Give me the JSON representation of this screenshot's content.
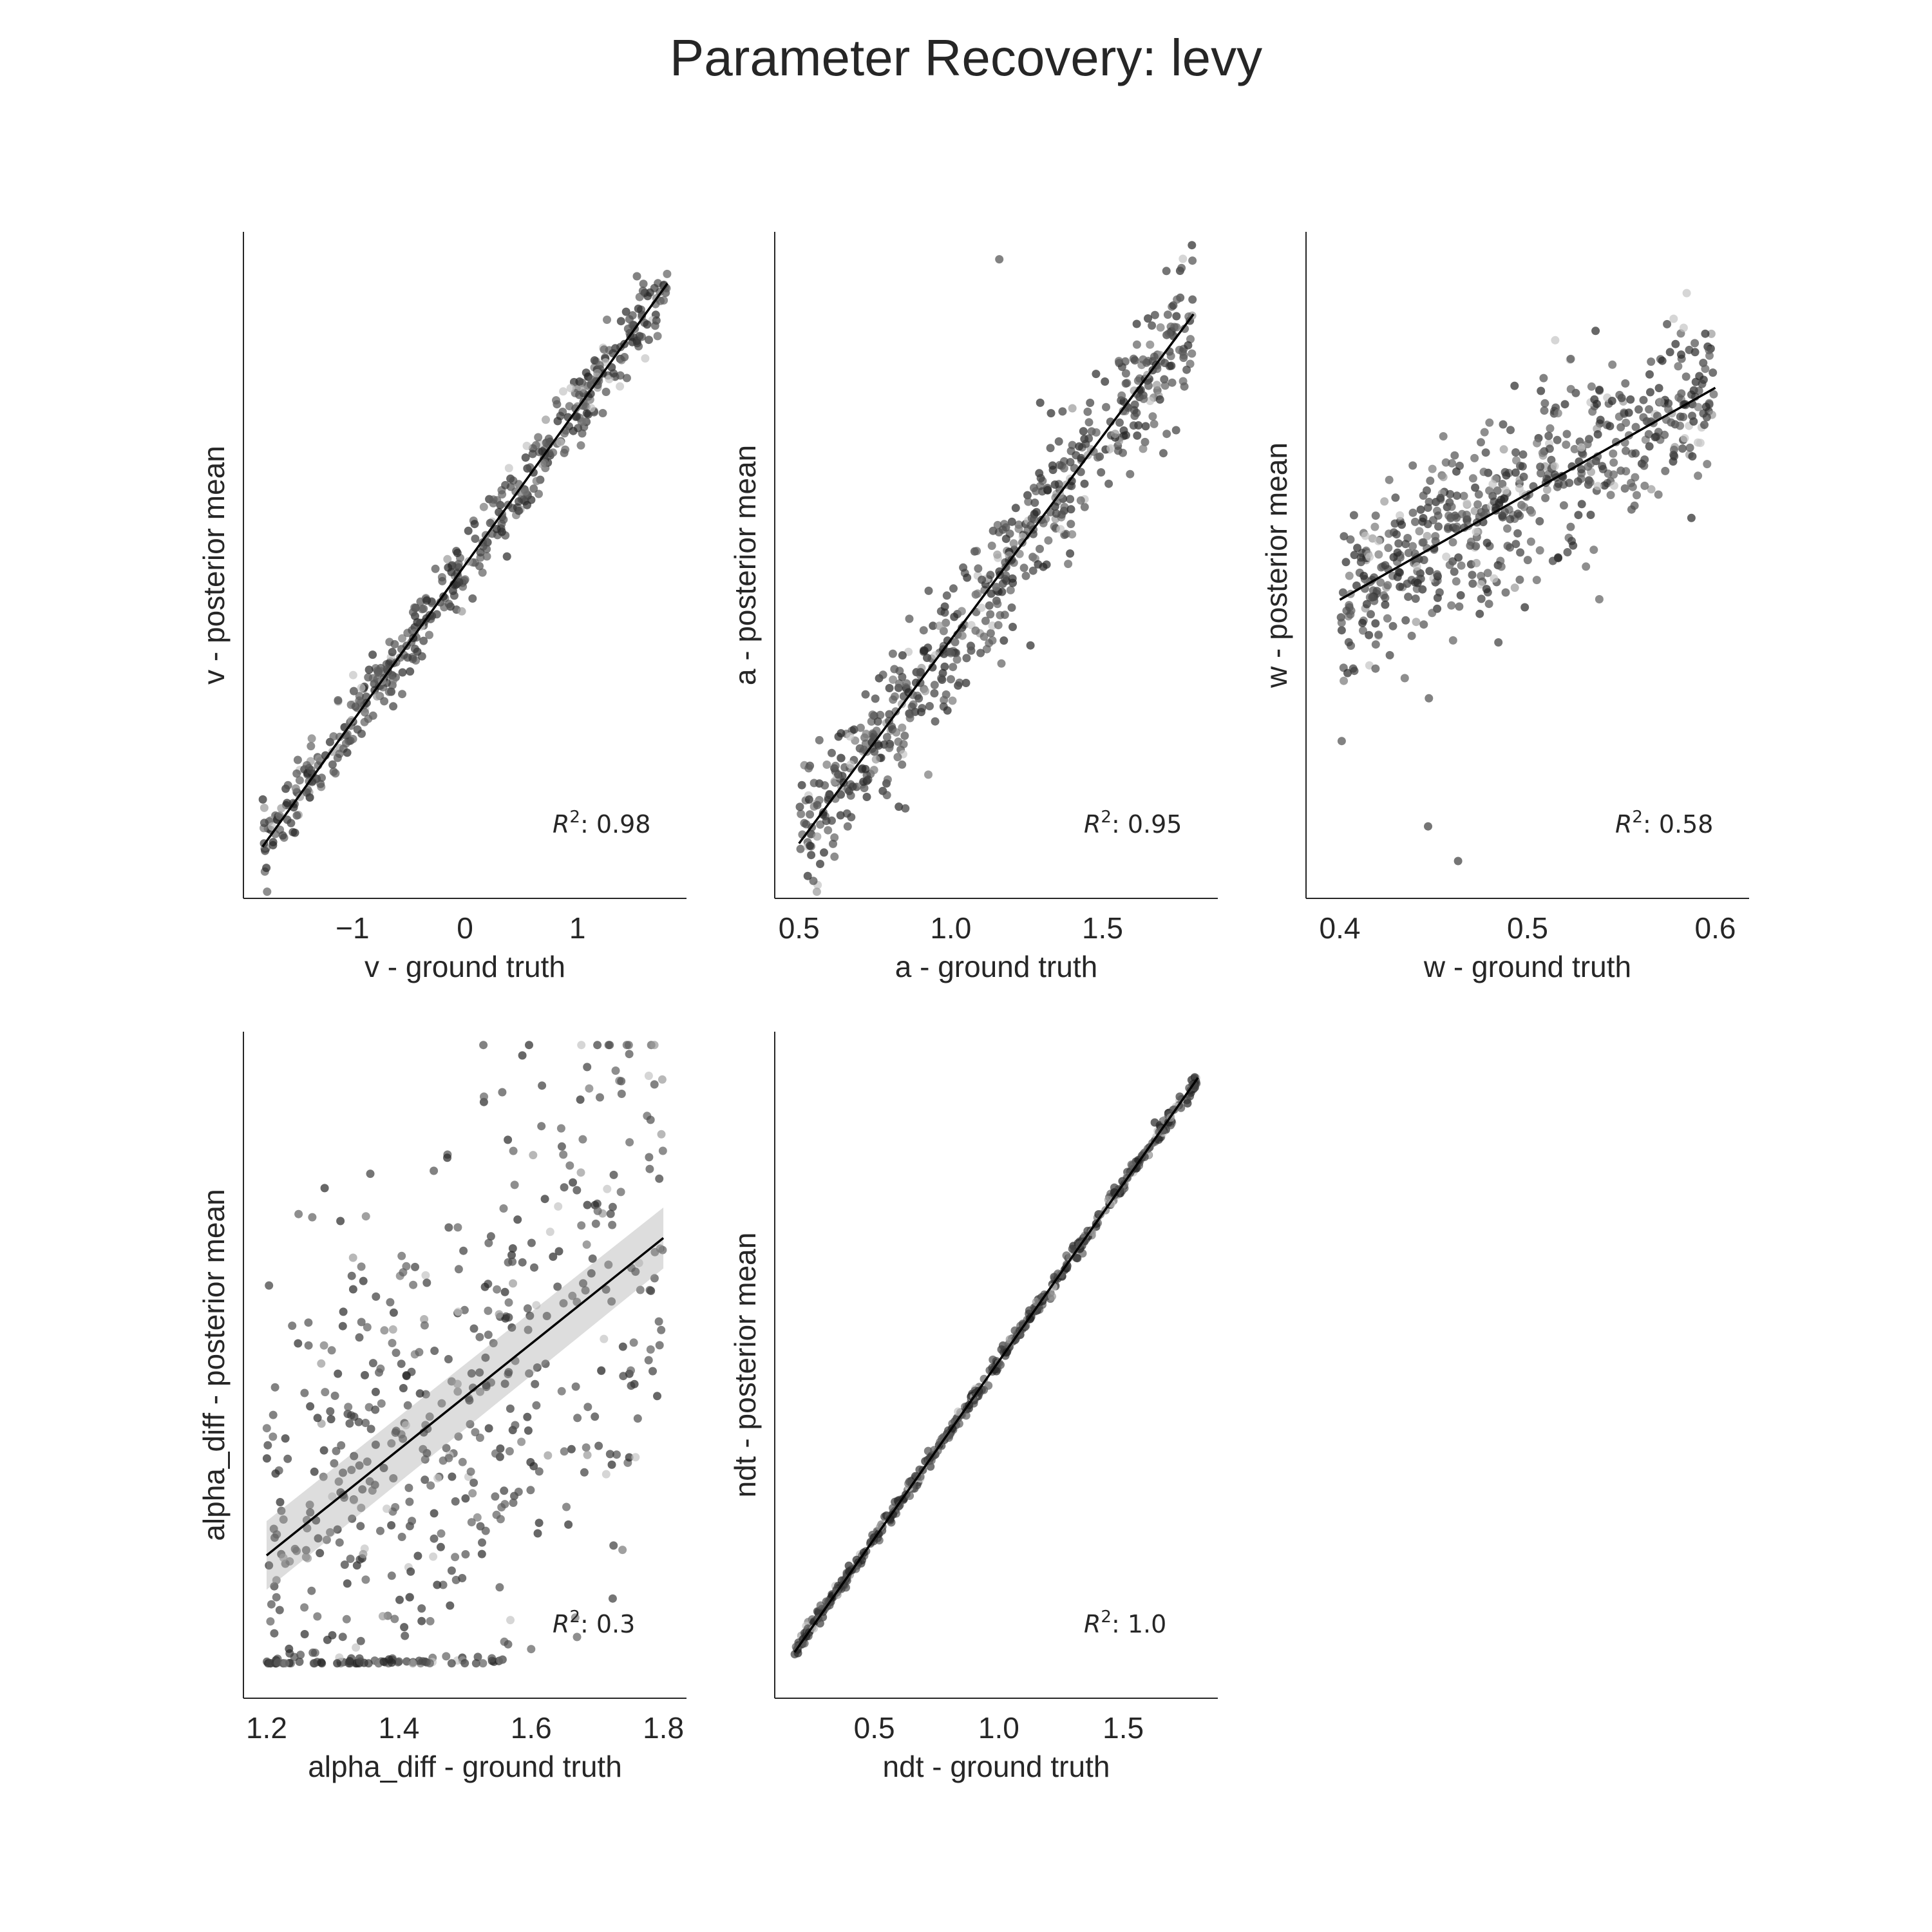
{
  "title": "Parameter Recovery: levy",
  "chart_data": [
    {
      "type": "scatter",
      "param": "v",
      "xlabel": "v - ground truth",
      "ylabel": "v - posterior mean",
      "xlim": [
        -1.97,
        1.97
      ],
      "ylim": [
        -2.13,
        2.13
      ],
      "xticks": [
        -1,
        0,
        1
      ],
      "xtick_labels": [
        "−1",
        "0",
        "1"
      ],
      "r2_prefix": "R",
      "r2_sup": "2",
      "r2_value": ": 0.98",
      "fit": {
        "x": [
          -1.8,
          1.8
        ],
        "y": [
          -1.8,
          1.8
        ]
      },
      "n_points": 500,
      "noise": 0.11,
      "outliers": []
    },
    {
      "type": "scatter",
      "param": "a",
      "xlabel": "a - ground truth",
      "ylabel": "a - posterior mean",
      "xlim": [
        0.42,
        1.88
      ],
      "ylim": [
        0.3,
        2.0
      ],
      "xticks": [
        0.5,
        1.0,
        1.5
      ],
      "xtick_labels": [
        "0.5",
        "1.0",
        "1.5"
      ],
      "r2_prefix": "R",
      "r2_sup": "2",
      "r2_value": ": 0.95",
      "fit": {
        "x": [
          0.5,
          1.8
        ],
        "y": [
          0.44,
          1.79
        ]
      },
      "n_points": 600,
      "noise": 0.085,
      "outliers": [
        [
          1.16,
          1.93
        ]
      ]
    },
    {
      "type": "scatter",
      "param": "w",
      "xlabel": "w - ground truth",
      "ylabel": "w - posterior mean",
      "xlim": [
        0.382,
        0.618
      ],
      "ylim": [
        0.3,
        0.8
      ],
      "xticks": [
        0.4,
        0.5,
        0.6
      ],
      "xtick_labels": [
        "0.4",
        "0.5",
        "0.6"
      ],
      "r2_prefix": "R",
      "r2_sup": "2",
      "r2_value": ": 0.58",
      "fit": {
        "x": [
          0.4,
          0.6
        ],
        "y": [
          0.524,
          0.683
        ]
      },
      "n_points": 600,
      "noise": 0.033,
      "outliers": [
        [
          0.447,
          0.354
        ],
        [
          0.463,
          0.328
        ],
        [
          0.401,
          0.418
        ]
      ]
    },
    {
      "type": "scatter",
      "param": "alpha_diff",
      "xlabel": "alpha_diff - ground truth",
      "ylabel": "alpha_diff - posterior mean",
      "xlim": [
        1.165,
        1.835
      ],
      "ylim": [
        0.3,
        2.4
      ],
      "xticks": [
        1.2,
        1.4,
        1.6,
        1.8
      ],
      "xtick_labels": [
        "1.2",
        "1.4",
        "1.6",
        "1.8"
      ],
      "r2_prefix": "R",
      "r2_sup": "2",
      "r2_value": ": 0.3",
      "fit": {
        "x": [
          1.2,
          1.8
        ],
        "y": [
          0.75,
          1.75
        ]
      },
      "n_points": 600,
      "noise": 0.45,
      "floor": 0.41,
      "outliers": []
    },
    {
      "type": "scatter",
      "param": "ndt",
      "xlabel": "ndt - ground truth",
      "ylabel": "ndt - posterior mean",
      "xlim": [
        0.1,
        1.88
      ],
      "ylim": [
        0.05,
        1.93
      ],
      "xticks": [
        0.5,
        1.0,
        1.5
      ],
      "xtick_labels": [
        "0.5",
        "1.0",
        "1.5"
      ],
      "r2_prefix": "R",
      "r2_sup": "2",
      "r2_value": ": 1.0",
      "fit": {
        "x": [
          0.18,
          1.8
        ],
        "y": [
          0.18,
          1.8
        ]
      },
      "n_points": 500,
      "noise": 0.011,
      "outliers": []
    }
  ]
}
